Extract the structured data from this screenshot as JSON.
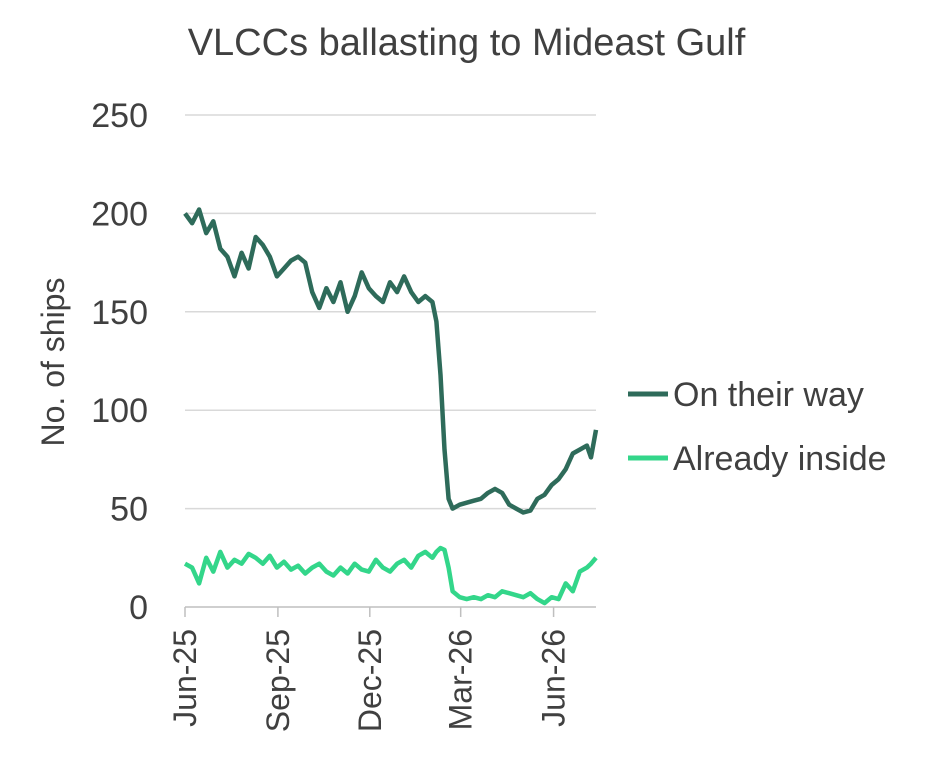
{
  "chart_data": {
    "type": "line",
    "title": "VLCCs ballasting to Mideast Gulf",
    "xlabel": "",
    "ylabel": "No. of ships",
    "ylim": [
      0,
      250
    ],
    "yticks": [
      0,
      50,
      100,
      150,
      200,
      250
    ],
    "xlim": [
      "2025-06-01",
      "2026-07-13"
    ],
    "xticks": [
      "Jun-25",
      "Sep-25",
      "Dec-25",
      "Mar-26",
      "Jun-26"
    ],
    "xtick_dates": [
      "2025-06-01",
      "2025-09-01",
      "2025-12-01",
      "2026-03-01",
      "2026-06-01"
    ],
    "grid": "horizontal",
    "legend_position": "right",
    "series": [
      {
        "name": "On their way",
        "color": "#2e6b5a",
        "points": [
          [
            "2025-06-01",
            200
          ],
          [
            "2025-06-08",
            195
          ],
          [
            "2025-06-15",
            202
          ],
          [
            "2025-06-22",
            190
          ],
          [
            "2025-06-29",
            196
          ],
          [
            "2025-07-06",
            182
          ],
          [
            "2025-07-13",
            178
          ],
          [
            "2025-07-20",
            168
          ],
          [
            "2025-07-27",
            180
          ],
          [
            "2025-08-03",
            172
          ],
          [
            "2025-08-10",
            188
          ],
          [
            "2025-08-17",
            184
          ],
          [
            "2025-08-24",
            178
          ],
          [
            "2025-08-31",
            168
          ],
          [
            "2025-09-07",
            172
          ],
          [
            "2025-09-14",
            176
          ],
          [
            "2025-09-21",
            178
          ],
          [
            "2025-09-28",
            175
          ],
          [
            "2025-10-05",
            160
          ],
          [
            "2025-10-12",
            152
          ],
          [
            "2025-10-19",
            162
          ],
          [
            "2025-10-26",
            155
          ],
          [
            "2025-11-02",
            165
          ],
          [
            "2025-11-09",
            150
          ],
          [
            "2025-11-16",
            158
          ],
          [
            "2025-11-23",
            170
          ],
          [
            "2025-11-30",
            162
          ],
          [
            "2025-12-07",
            158
          ],
          [
            "2025-12-14",
            155
          ],
          [
            "2025-12-21",
            165
          ],
          [
            "2025-12-28",
            160
          ],
          [
            "2026-01-04",
            168
          ],
          [
            "2026-01-11",
            160
          ],
          [
            "2026-01-18",
            155
          ],
          [
            "2026-01-25",
            158
          ],
          [
            "2026-02-01",
            155
          ],
          [
            "2026-02-05",
            145
          ],
          [
            "2026-02-09",
            118
          ],
          [
            "2026-02-13",
            80
          ],
          [
            "2026-02-17",
            55
          ],
          [
            "2026-02-21",
            50
          ],
          [
            "2026-02-28",
            52
          ],
          [
            "2026-03-07",
            53
          ],
          [
            "2026-03-14",
            54
          ],
          [
            "2026-03-21",
            55
          ],
          [
            "2026-03-28",
            58
          ],
          [
            "2026-04-04",
            60
          ],
          [
            "2026-04-11",
            58
          ],
          [
            "2026-04-18",
            52
          ],
          [
            "2026-04-25",
            50
          ],
          [
            "2026-05-02",
            48
          ],
          [
            "2026-05-09",
            49
          ],
          [
            "2026-05-16",
            55
          ],
          [
            "2026-05-23",
            57
          ],
          [
            "2026-05-30",
            62
          ],
          [
            "2026-06-06",
            65
          ],
          [
            "2026-06-13",
            70
          ],
          [
            "2026-06-20",
            78
          ],
          [
            "2026-06-27",
            80
          ],
          [
            "2026-07-04",
            82
          ],
          [
            "2026-07-08",
            76
          ],
          [
            "2026-07-13",
            90
          ]
        ]
      },
      {
        "name": "Already inside",
        "color": "#33d68a",
        "points": [
          [
            "2025-06-01",
            22
          ],
          [
            "2025-06-08",
            20
          ],
          [
            "2025-06-15",
            12
          ],
          [
            "2025-06-22",
            25
          ],
          [
            "2025-06-29",
            18
          ],
          [
            "2025-07-06",
            28
          ],
          [
            "2025-07-13",
            20
          ],
          [
            "2025-07-20",
            24
          ],
          [
            "2025-07-27",
            22
          ],
          [
            "2025-08-03",
            27
          ],
          [
            "2025-08-10",
            25
          ],
          [
            "2025-08-17",
            22
          ],
          [
            "2025-08-24",
            26
          ],
          [
            "2025-08-31",
            20
          ],
          [
            "2025-09-07",
            23
          ],
          [
            "2025-09-14",
            19
          ],
          [
            "2025-09-21",
            21
          ],
          [
            "2025-09-28",
            17
          ],
          [
            "2025-10-05",
            20
          ],
          [
            "2025-10-12",
            22
          ],
          [
            "2025-10-19",
            18
          ],
          [
            "2025-10-26",
            16
          ],
          [
            "2025-11-02",
            20
          ],
          [
            "2025-11-09",
            17
          ],
          [
            "2025-11-16",
            22
          ],
          [
            "2025-11-23",
            19
          ],
          [
            "2025-11-30",
            18
          ],
          [
            "2025-12-07",
            24
          ],
          [
            "2025-12-14",
            20
          ],
          [
            "2025-12-21",
            18
          ],
          [
            "2025-12-28",
            22
          ],
          [
            "2026-01-04",
            24
          ],
          [
            "2026-01-11",
            20
          ],
          [
            "2026-01-18",
            26
          ],
          [
            "2026-01-25",
            28
          ],
          [
            "2026-02-01",
            25
          ],
          [
            "2026-02-05",
            28
          ],
          [
            "2026-02-09",
            30
          ],
          [
            "2026-02-13",
            29
          ],
          [
            "2026-02-17",
            20
          ],
          [
            "2026-02-21",
            8
          ],
          [
            "2026-02-28",
            5
          ],
          [
            "2026-03-07",
            4
          ],
          [
            "2026-03-14",
            5
          ],
          [
            "2026-03-21",
            4
          ],
          [
            "2026-03-28",
            6
          ],
          [
            "2026-04-04",
            5
          ],
          [
            "2026-04-11",
            8
          ],
          [
            "2026-04-18",
            7
          ],
          [
            "2026-04-25",
            6
          ],
          [
            "2026-05-02",
            5
          ],
          [
            "2026-05-09",
            7
          ],
          [
            "2026-05-16",
            4
          ],
          [
            "2026-05-23",
            2
          ],
          [
            "2026-05-30",
            5
          ],
          [
            "2026-06-06",
            4
          ],
          [
            "2026-06-13",
            12
          ],
          [
            "2026-06-20",
            8
          ],
          [
            "2026-06-27",
            18
          ],
          [
            "2026-07-04",
            20
          ],
          [
            "2026-07-08",
            22
          ],
          [
            "2026-07-13",
            25
          ]
        ]
      }
    ]
  }
}
